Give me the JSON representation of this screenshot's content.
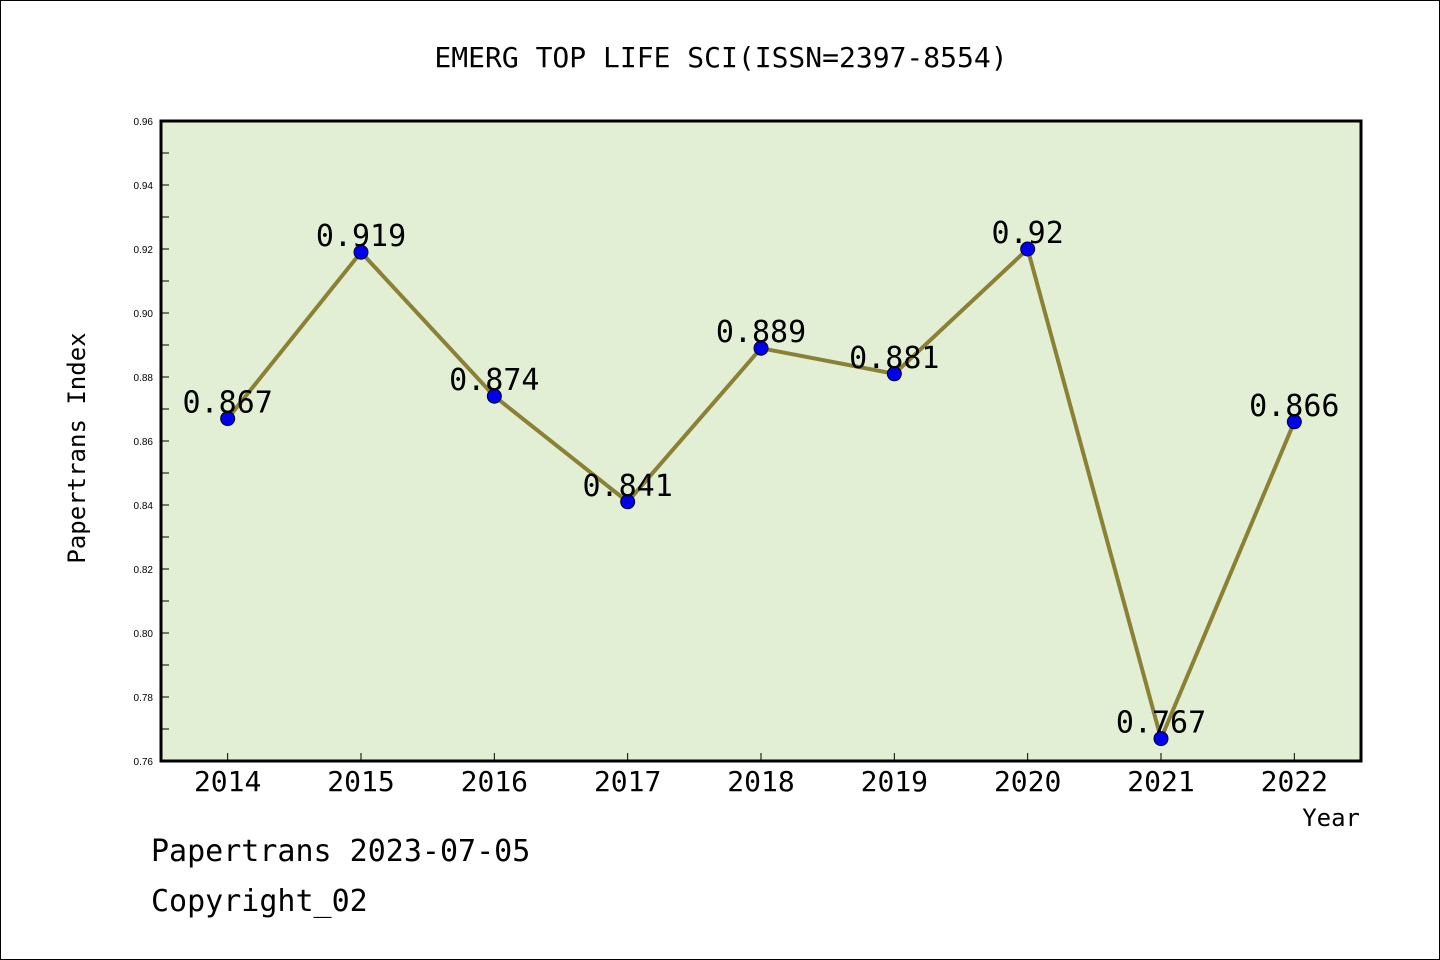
{
  "chart_data": {
    "type": "line",
    "title": "EMERG TOP LIFE SCI(ISSN=2397-8554)",
    "xlabel": "Year",
    "ylabel": "Papertrans Index",
    "categories": [
      "2014",
      "2015",
      "2016",
      "2017",
      "2018",
      "2019",
      "2020",
      "2021",
      "2022"
    ],
    "series": [
      {
        "values": [
          0.867,
          0.919,
          0.874,
          0.841,
          0.889,
          0.881,
          0.92,
          0.767,
          0.866
        ]
      }
    ],
    "data_labels": [
      "0.867",
      "0.919",
      "0.874",
      "0.841",
      "0.889",
      "0.881",
      "0.92",
      "0.767",
      "0.866"
    ],
    "ylim": [
      0.76,
      0.96
    ],
    "yticks": [
      "0.76",
      "0.78",
      "0.80",
      "0.82",
      "0.84",
      "0.86",
      "0.88",
      "0.90",
      "0.92",
      "0.94",
      "0.96"
    ],
    "grid": false,
    "colors": {
      "plot_bg": "#e2efd5",
      "line": "#8b8135",
      "marker": "#0000ee"
    }
  },
  "footer": {
    "source": "Papertrans 2023-07-05",
    "copyright": "Copyright_02"
  }
}
